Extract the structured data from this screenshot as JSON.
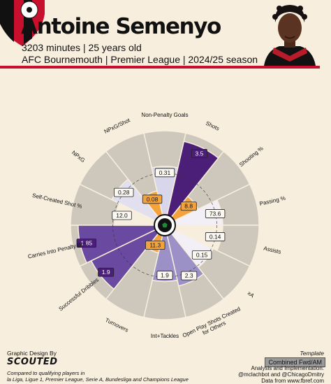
{
  "player": {
    "name": "Antoine Semenyo",
    "info_line1": "3203 minutes | 25 years old",
    "info_line2": "AFC Bournemouth | Premier League | 2024/25 season"
  },
  "colors": {
    "attacking": "#4b1f78",
    "possession": "#f4a23d",
    "creation": "#d8d6ea",
    "defending": "#9b91c6",
    "brand_red": "#c8102e",
    "background": "#f7eedd",
    "backdrop_slice": "#cdc7bc"
  },
  "chart_data": {
    "type": "radar-pizza",
    "percentile_range": [
      0,
      100
    ],
    "segments": [
      {
        "label": "Non-Penalty Goals",
        "value": "0.31",
        "percentile": 58,
        "color": "#d8d6ea"
      },
      {
        "label": "Shots",
        "value": "3.5",
        "percentile": 90,
        "color": "#4b1f78"
      },
      {
        "label": "Shooting %",
        "value": "8.8",
        "percentile": 32,
        "color": "#f4a23d"
      },
      {
        "label": "Passing %",
        "value": "73.6",
        "percentile": 57,
        "color": "#f2f0f6"
      },
      {
        "label": "Assists",
        "value": "0.14",
        "percentile": 57,
        "color": "#f7eedd"
      },
      {
        "label": "xA",
        "value": "0.15",
        "percentile": 52,
        "color": "#f2f0f6"
      },
      {
        "label": "Open Play Shots Created for Others",
        "value": "2.3",
        "percentile": 62,
        "color": "#9b91c6"
      },
      {
        "label": "Int+Tackles",
        "value": "1.9",
        "percentile": 55,
        "color": "#9b91c6"
      },
      {
        "label": "Turnovers",
        "value": "11.3",
        "percentile": 22,
        "color": "#f4a23d"
      },
      {
        "label": "Successful Dribbles",
        "value": "1.9",
        "percentile": 85,
        "color": "#6a4aa0"
      },
      {
        "label": "Carries Into Penalty Box",
        "value": "1.85",
        "percentile": 91,
        "color": "#6a4aa0"
      },
      {
        "label": "Self-Created Shot %",
        "value": "12.0",
        "percentile": 48,
        "color": "#f7eedd"
      },
      {
        "label": "NPxG",
        "value": "0.28",
        "percentile": 58,
        "color": "#e2e0ef"
      },
      {
        "label": "NPxG/Shot",
        "value": "0.08",
        "percentile": 30,
        "color": "#f4a23d"
      }
    ]
  },
  "footer": {
    "design_by": "Graphic Design By",
    "brand_logo": "SCOUTED",
    "compared_line1": "Compared to qualifying players in",
    "compared_line2": "la Liga, Ligue 1, Premier League, Serie A, Bundesliga and Champions League",
    "template_label": "Template",
    "template_value": "Combined Fwd/AM",
    "credit_line1": "Analysis and Implementation:",
    "credit_line2": "@mclachbot and @ChicagoDmitry",
    "credit_line3": "Data from www.fbref.com"
  },
  "icons": {
    "crest": "afc-bournemouth-crest-icon",
    "center": "football-icon",
    "photo": "player-headshot-icon"
  }
}
